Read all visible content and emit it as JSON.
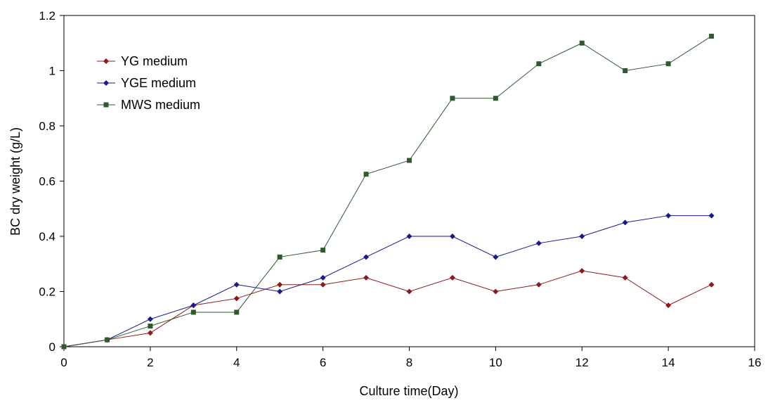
{
  "chart_data": {
    "type": "line",
    "title": "",
    "xlabel": "Culture time(Day)",
    "ylabel": "BC dry weight (g/L)",
    "xlim": [
      0,
      16
    ],
    "ylim": [
      0,
      1.2
    ],
    "xticks": [
      "0",
      "2",
      "4",
      "6",
      "8",
      "10",
      "12",
      "14",
      "16"
    ],
    "yticks": [
      "0",
      "0.2",
      "0.4",
      "0.6",
      "0.8",
      "1",
      "1.2"
    ],
    "grid": false,
    "legend_position": "top-left",
    "x": [
      0,
      1,
      2,
      3,
      4,
      5,
      6,
      7,
      8,
      9,
      10,
      11,
      12,
      13,
      14,
      15
    ],
    "series": [
      {
        "name": "YG medium",
        "color": "#8b1a1a",
        "marker": "diamond",
        "values": [
          0,
          0.025,
          0.05,
          0.15,
          0.175,
          0.225,
          0.225,
          0.25,
          0.2,
          0.25,
          0.2,
          0.225,
          0.275,
          0.25,
          0.15,
          0.225
        ]
      },
      {
        "name": "YGE medium",
        "color": "#1a1a8b",
        "marker": "diamond",
        "values": [
          0,
          0.025,
          0.1,
          0.15,
          0.225,
          0.2,
          0.25,
          0.325,
          0.4,
          0.4,
          0.325,
          0.375,
          0.4,
          0.45,
          0.475,
          0.475
        ]
      },
      {
        "name": "MWS medium",
        "color": "#2e5a2e",
        "marker": "square",
        "values": [
          0,
          0.025,
          0.075,
          0.125,
          0.125,
          0.325,
          0.35,
          0.625,
          0.675,
          0.9,
          0.9,
          1.025,
          1.1,
          1.0,
          1.025,
          1.125
        ]
      }
    ]
  }
}
